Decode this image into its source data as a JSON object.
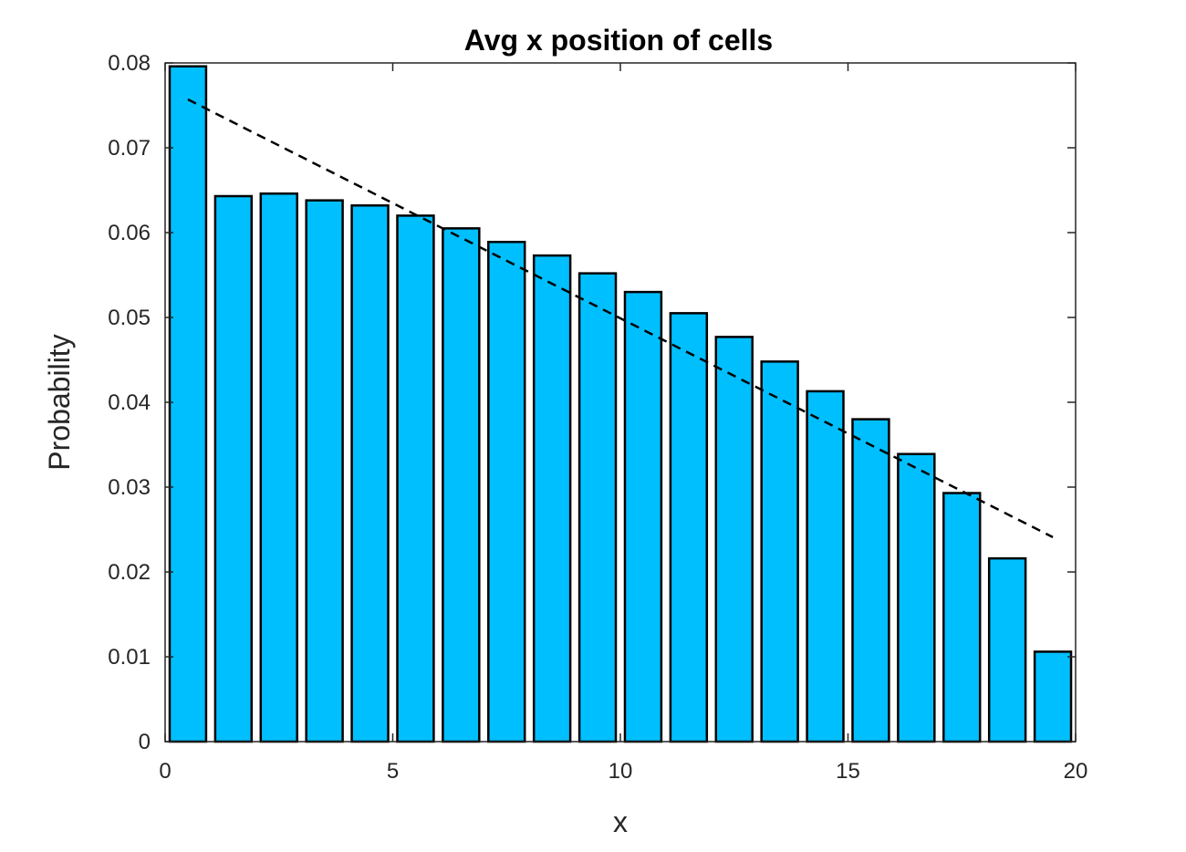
{
  "chart_data": {
    "type": "bar",
    "title": "Avg x position of cells",
    "xlabel": "x",
    "ylabel": "Probability",
    "xlim": [
      0,
      20
    ],
    "ylim": [
      0,
      0.08
    ],
    "x_ticks": [
      0,
      5,
      10,
      15,
      20
    ],
    "y_ticks": [
      0,
      0.01,
      0.02,
      0.03,
      0.04,
      0.05,
      0.06,
      0.07,
      0.08
    ],
    "bin_width": 1,
    "x": [
      0.5,
      1.5,
      2.5,
      3.5,
      4.5,
      5.5,
      6.5,
      7.5,
      8.5,
      9.5,
      10.5,
      11.5,
      12.5,
      13.5,
      14.5,
      15.5,
      16.5,
      17.5,
      18.5,
      19.5
    ],
    "values": [
      0.0796,
      0.0643,
      0.0646,
      0.0638,
      0.0632,
      0.062,
      0.0605,
      0.0589,
      0.0573,
      0.0552,
      0.053,
      0.0505,
      0.0477,
      0.0448,
      0.0413,
      0.038,
      0.0339,
      0.0293,
      0.0216,
      0.0106
    ],
    "bar_color": "#00BFFF",
    "bar_edge_color": "#000000",
    "fit_line": {
      "style": "dashed",
      "color": "#000000",
      "x": [
        0.5,
        19.5
      ],
      "y": [
        0.0757,
        0.0241
      ]
    },
    "grid": false,
    "legend": "none"
  }
}
